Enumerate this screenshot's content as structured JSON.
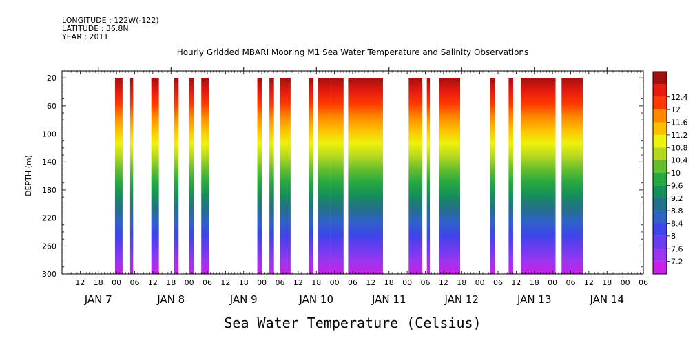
{
  "header": {
    "longitude": "LONGITUDE : 122W(-122)",
    "latitude": "LATITUDE : 36.8N",
    "year": "YEAR : 2011"
  },
  "chart_data": {
    "type": "heatmap",
    "title": "Hourly Gridded MBARI Mooring M1 Sea Water Temperature and Salinity Observations",
    "ylabel": "DEPTH (m)",
    "xlabel": "Sea Water Temperature (Celsius)",
    "yticks": [
      20,
      60,
      100,
      140,
      180,
      220,
      260,
      300
    ],
    "ylim": [
      300,
      10
    ],
    "xlim_hours": [
      0,
      192
    ],
    "hour_tick_labels": [
      "12",
      "18",
      "00",
      "06",
      "12",
      "18",
      "00",
      "06",
      "12",
      "18",
      "00",
      "06",
      "12",
      "18",
      "00",
      "06",
      "12",
      "18",
      "00",
      "06",
      "12",
      "18",
      "00",
      "06",
      "12",
      "18",
      "00",
      "06",
      "12",
      "18",
      "00",
      "06"
    ],
    "day_labels": [
      "JAN  7",
      "JAN  8",
      "JAN  9",
      "JAN 10",
      "JAN 11",
      "JAN 12",
      "JAN 13",
      "JAN 14"
    ],
    "colorbar": {
      "levels": [
        7.2,
        7.6,
        8,
        8.4,
        8.8,
        9.2,
        9.6,
        10,
        10.4,
        10.8,
        11.2,
        11.6,
        12,
        12.4
      ],
      "colors": [
        "#c820e6",
        "#9a35f0",
        "#6a3cf0",
        "#3c46e8",
        "#2f63c8",
        "#23708a",
        "#158f5a",
        "#27a840",
        "#66be2e",
        "#b6d81e",
        "#eef20c",
        "#ffc000",
        "#ff8a00",
        "#ff3a00",
        "#e61a0f",
        "#a01010"
      ]
    },
    "segments_hours": [
      [
        17.5,
        20
      ],
      [
        22.5,
        23.5
      ],
      [
        29.5,
        32
      ],
      [
        37,
        38.5
      ],
      [
        42,
        43.5
      ],
      [
        46,
        48.5
      ],
      [
        64.5,
        66
      ],
      [
        68.5,
        70
      ],
      [
        72,
        75.5
      ],
      [
        81.5,
        83
      ],
      [
        84.5,
        88.5
      ],
      [
        88.5,
        93
      ],
      [
        94.5,
        106
      ],
      [
        114.5,
        119
      ],
      [
        120.5,
        121.5
      ],
      [
        124.5,
        131.5
      ],
      [
        141.5,
        143
      ],
      [
        147.5,
        149
      ],
      [
        151.5,
        163
      ],
      [
        165,
        172
      ]
    ]
  }
}
